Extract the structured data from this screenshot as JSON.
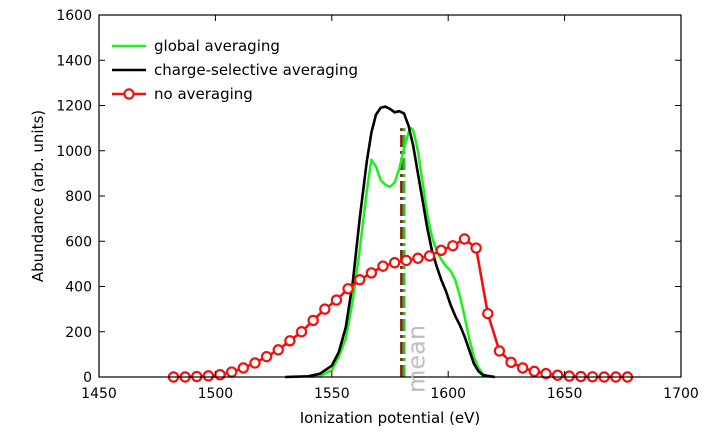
{
  "chart_data": {
    "type": "line",
    "xlabel": "Ionization potential (eV)",
    "ylabel": "Abundance (arb. units)",
    "xlim": [
      1450,
      1700
    ],
    "ylim": [
      0,
      1600
    ],
    "xticks": [
      1450,
      1500,
      1550,
      1600,
      1650,
      1700
    ],
    "yticks": [
      0,
      200,
      400,
      600,
      800,
      1000,
      1200,
      1400,
      1600
    ],
    "grid": false,
    "legend": "top-left",
    "annotations": [
      {
        "text": "mean",
        "x": 1586,
        "y": 230,
        "color": "#bfbfbf",
        "rotation": -90
      }
    ],
    "mean_lines": [
      {
        "x": 1580,
        "y": [
          0,
          1100
        ],
        "color": "#8b1a00"
      },
      {
        "x": 1581,
        "y": [
          0,
          1100
        ],
        "color": "#2dbb2d"
      }
    ],
    "series": [
      {
        "name": "global averaging",
        "color": "#22ee22",
        "style": "line",
        "x": [
          1540,
          1545,
          1550,
          1553,
          1556,
          1559,
          1562,
          1565,
          1567,
          1569,
          1571,
          1573,
          1575,
          1577,
          1579,
          1581,
          1583,
          1584,
          1585,
          1587,
          1589,
          1591,
          1593,
          1595,
          1597,
          1599,
          1601,
          1603,
          1605,
          1607,
          1609,
          1611,
          1613,
          1615,
          1617,
          1620
        ],
        "y": [
          0,
          5,
          30,
          90,
          170,
          340,
          560,
          820,
          960,
          930,
          870,
          850,
          840,
          860,
          920,
          1010,
          1080,
          1100,
          1090,
          1000,
          860,
          720,
          620,
          560,
          520,
          490,
          470,
          430,
          360,
          270,
          170,
          90,
          40,
          12,
          3,
          0
        ]
      },
      {
        "name": "charge-selective averaging",
        "color": "#000000",
        "style": "line",
        "x": [
          1530,
          1540,
          1545,
          1550,
          1553,
          1556,
          1559,
          1562,
          1565,
          1567,
          1569,
          1571,
          1573,
          1575,
          1577,
          1579,
          1581,
          1583,
          1585,
          1587,
          1589,
          1591,
          1593,
          1595,
          1597,
          1599,
          1601,
          1603,
          1605,
          1607,
          1609,
          1611,
          1613,
          1615,
          1620
        ],
        "y": [
          0,
          3,
          15,
          50,
          110,
          220,
          420,
          700,
          950,
          1080,
          1160,
          1190,
          1195,
          1185,
          1170,
          1175,
          1165,
          1110,
          1020,
          900,
          780,
          660,
          560,
          490,
          430,
          380,
          320,
          270,
          230,
          180,
          120,
          60,
          25,
          8,
          0
        ]
      },
      {
        "name": "no averaging",
        "color": "#ee1111",
        "style": "line-markers",
        "marker": "open-circle",
        "x": [
          1482,
          1487,
          1492,
          1497,
          1502,
          1507,
          1512,
          1517,
          1522,
          1527,
          1532,
          1537,
          1542,
          1547,
          1552,
          1557,
          1562,
          1567,
          1572,
          1577,
          1582,
          1587,
          1592,
          1597,
          1602,
          1607,
          1612,
          1617,
          1622,
          1627,
          1632,
          1637,
          1642,
          1647,
          1652,
          1657,
          1662,
          1667,
          1672,
          1677
        ],
        "y": [
          0,
          0,
          2,
          5,
          10,
          22,
          40,
          62,
          90,
          120,
          160,
          200,
          250,
          300,
          340,
          390,
          430,
          460,
          490,
          505,
          515,
          525,
          535,
          560,
          580,
          610,
          570,
          280,
          115,
          65,
          40,
          25,
          15,
          8,
          4,
          2,
          1,
          0,
          0,
          0
        ]
      }
    ]
  }
}
